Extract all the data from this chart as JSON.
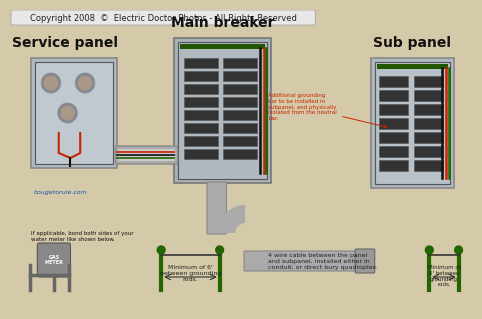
{
  "bg_color": "#d4c9a8",
  "title_bar_bg": "#e8e8e8",
  "title_bar_border": "#999999",
  "panel_colors": {
    "service": {
      "face": "#b0b8c0",
      "edge": "#888888"
    },
    "main": {
      "face": "#a8b0b8",
      "edge": "#777777"
    },
    "sub": {
      "face": "#b0b8c0",
      "edge": "#888888"
    }
  },
  "labels": {
    "title_bar_text": "Copyright 2008  ©  Electric Doctor Photos - All Rights Reserved",
    "service_panel": "Service panel",
    "main_breaker": "Main breaker",
    "sub_panel": "Sub panel",
    "grounding_note_left": "Minimum of 6'\nbetween grounding\nrods.",
    "grounding_note_right": "Minimum of\n6' between\ngrounding\nrods.",
    "bond_note": "If applicable, bond both sides of your\nwater meter like shown below.",
    "cable_note": "4 wire cable between the panel\nand subpanel, installed either in\nconduit, or direct bury quadroplex.",
    "additional_grounding": "Additional grounding\nbar to be installed in\nsubpanel, and physically\nisolated from the neutral\nbar.",
    "website": "bougetorule.com"
  },
  "wire_colors": {
    "red": "#cc2200",
    "black": "#111111",
    "green": "#226600",
    "gray": "#888888",
    "conduit": "#aaaaaa"
  },
  "font_sizes": {
    "copyright": 6,
    "panel_label": 10,
    "note": 5.5
  }
}
